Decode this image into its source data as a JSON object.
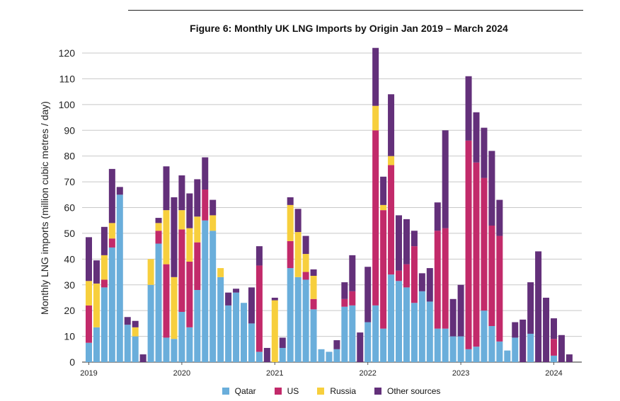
{
  "chart_data": {
    "type": "bar",
    "stacked": true,
    "title": "Figure 6: Monthly UK LNG Imports by Origin Jan 2019 – March 2024",
    "ylabel": "Monthly LNG imports (million cubic metres / day)",
    "xlabel": "",
    "ylim": [
      0,
      120
    ],
    "yticks": [
      0,
      10,
      20,
      30,
      40,
      50,
      60,
      70,
      80,
      90,
      100,
      110,
      120
    ],
    "grid": "horizontal",
    "legend_position": "bottom",
    "x_tick_labels": [
      {
        "label": "2019",
        "index": 0
      },
      {
        "label": "2020",
        "index": 12
      },
      {
        "label": "2021",
        "index": 24
      },
      {
        "label": "2022",
        "index": 36
      },
      {
        "label": "2023",
        "index": 48
      },
      {
        "label": "2024",
        "index": 60
      }
    ],
    "categories": [
      "Jan 2019",
      "Feb 2019",
      "Mar 2019",
      "Apr 2019",
      "May 2019",
      "Jun 2019",
      "Jul 2019",
      "Aug 2019",
      "Sep 2019",
      "Oct 2019",
      "Nov 2019",
      "Dec 2019",
      "Jan 2020",
      "Feb 2020",
      "Mar 2020",
      "Apr 2020",
      "May 2020",
      "Jun 2020",
      "Jul 2020",
      "Aug 2020",
      "Sep 2020",
      "Oct 2020",
      "Nov 2020",
      "Dec 2020",
      "Jan 2021",
      "Feb 2021",
      "Mar 2021",
      "Apr 2021",
      "May 2021",
      "Jun 2021",
      "Jul 2021",
      "Aug 2021",
      "Sep 2021",
      "Oct 2021",
      "Nov 2021",
      "Dec 2021",
      "Jan 2022",
      "Feb 2022",
      "Mar 2022",
      "Apr 2022",
      "May 2022",
      "Jun 2022",
      "Jul 2022",
      "Aug 2022",
      "Sep 2022",
      "Oct 2022",
      "Nov 2022",
      "Dec 2022",
      "Jan 2023",
      "Feb 2023",
      "Mar 2023",
      "Apr 2023",
      "May 2023",
      "Jun 2023",
      "Jul 2023",
      "Aug 2023",
      "Sep 2023",
      "Oct 2023",
      "Nov 2023",
      "Dec 2023",
      "Jan 2024",
      "Feb 2024",
      "Mar 2024"
    ],
    "series": [
      {
        "name": "Qatar",
        "color": "#6aaedb",
        "values": [
          7.5,
          13.5,
          29,
          44.5,
          65,
          14.5,
          10,
          0,
          30,
          46,
          9.5,
          9,
          19.5,
          13.5,
          28,
          55,
          51,
          33,
          22,
          27,
          23,
          15,
          4,
          0,
          0,
          5.5,
          36.5,
          33,
          32,
          20.5,
          5,
          4,
          5,
          21.5,
          22,
          0,
          15.5,
          22,
          13,
          34,
          31.5,
          29,
          23,
          27.5,
          23.5,
          13,
          13,
          10,
          10,
          5,
          6,
          20,
          14,
          8,
          4.5,
          9.5,
          0,
          11,
          0,
          0,
          2.5,
          0,
          0
        ]
      },
      {
        "name": "US",
        "color": "#c22a6a",
        "values": [
          14.5,
          0,
          3,
          3.5,
          0,
          0,
          0,
          0,
          0,
          5,
          28.5,
          0,
          32,
          25.5,
          18.5,
          12,
          0,
          0,
          0,
          0,
          0,
          0,
          33.5,
          0,
          0,
          0,
          10.5,
          0,
          3,
          4,
          0,
          0,
          0,
          3,
          5.5,
          0,
          0,
          68,
          46,
          42.5,
          4,
          9,
          22,
          0,
          0,
          38,
          39,
          0,
          0,
          81,
          71.5,
          51.5,
          39,
          41,
          0,
          0,
          0,
          0,
          0,
          0,
          6.5,
          0,
          0
        ]
      },
      {
        "name": "Russia",
        "color": "#f7cf3d",
        "values": [
          9.5,
          17,
          9.5,
          6,
          0,
          0,
          3.5,
          0,
          10,
          3,
          21,
          24,
          7.5,
          13,
          10,
          0,
          6,
          3.5,
          0,
          0,
          0,
          0,
          0,
          0,
          24,
          0,
          14,
          17.5,
          7,
          9,
          0,
          0,
          0,
          0,
          0,
          0,
          0,
          9.5,
          2,
          3.5,
          0,
          0,
          0,
          0,
          0,
          0,
          0,
          0,
          0,
          0,
          0,
          0,
          0,
          0,
          0,
          0,
          0,
          0,
          0,
          0,
          0,
          0,
          0
        ]
      },
      {
        "name": "Other sources",
        "color": "#63307a",
        "values": [
          17,
          9,
          11,
          21,
          3,
          3,
          2.5,
          3,
          0,
          2,
          17,
          31,
          13.5,
          13.5,
          14.5,
          12.5,
          6,
          0,
          5,
          1.5,
          0,
          14,
          7.5,
          5.5,
          1,
          4,
          3,
          9,
          7,
          2.5,
          0,
          0,
          3.5,
          6.5,
          14,
          11.5,
          21.5,
          22.5,
          11,
          24,
          21.5,
          17.5,
          6,
          7,
          13,
          11,
          38,
          14.5,
          20,
          25,
          19.5,
          19.5,
          29,
          14,
          0,
          6,
          16.5,
          20,
          43,
          25,
          8,
          10.5,
          3
        ]
      }
    ],
    "extra_other_values": [
      0,
      0,
      0,
      0,
      0,
      0,
      0,
      0,
      0,
      0,
      0,
      0,
      0,
      0,
      0,
      0,
      0,
      0,
      0,
      0,
      0,
      0,
      0,
      0,
      0,
      0,
      0,
      0,
      0,
      0,
      0,
      0,
      0,
      0,
      0,
      0,
      0,
      0,
      0,
      0,
      0,
      0,
      0,
      0,
      0,
      0,
      0,
      0,
      0,
      0,
      0,
      0,
      0,
      0,
      0,
      0,
      0,
      0,
      0,
      0,
      0,
      0,
      0
    ]
  },
  "legend": {
    "items": [
      {
        "label": "Qatar",
        "color": "#6aaedb"
      },
      {
        "label": "US",
        "color": "#c22a6a"
      },
      {
        "label": "Russia",
        "color": "#f7cf3d"
      },
      {
        "label": "Other sources",
        "color": "#63307a"
      }
    ]
  }
}
